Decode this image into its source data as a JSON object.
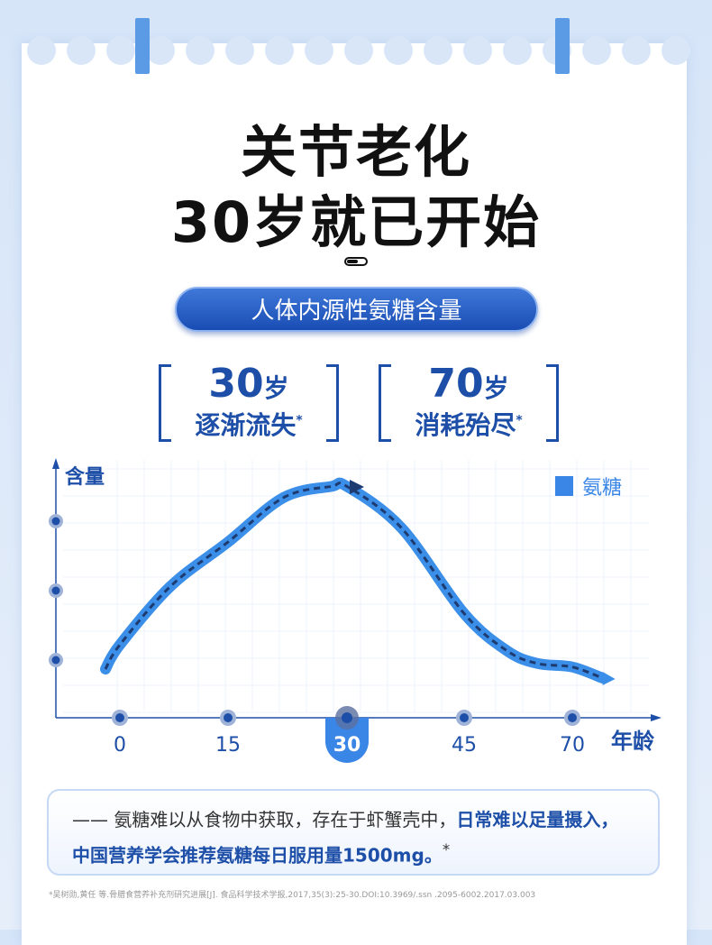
{
  "header": {
    "line1": "关节老化",
    "line2": "30岁就已开始"
  },
  "pill": "人体内源性氨糖含量",
  "stats": [
    {
      "num": "30",
      "unit": "岁",
      "text": "逐渐流失",
      "mark": "*"
    },
    {
      "num": "70",
      "unit": "岁",
      "text": "消耗殆尽",
      "mark": "*"
    }
  ],
  "colors": {
    "accent": "#1e4fa8",
    "curve": "#3b8fe8",
    "highlight": "#3a86e6"
  },
  "chart_data": {
    "type": "line",
    "ylabel": "含量",
    "xlabel": "年龄",
    "legend": {
      "label": "氨糖",
      "position": "top-right"
    },
    "x_ticks": [
      "0",
      "15",
      "30",
      "45",
      "70"
    ],
    "highlight_tick": "30",
    "y_ticks_unlabeled": [
      1,
      2,
      3
    ],
    "ylim": [
      0,
      4
    ],
    "x": [
      -2,
      0,
      7,
      15,
      22,
      28,
      30,
      37,
      45,
      55,
      62,
      70,
      77
    ],
    "y": [
      0.87,
      1.22,
      2.06,
      2.7,
      3.34,
      3.5,
      3.5,
      2.9,
      1.67,
      1.13,
      0.95,
      0.9,
      0.74
    ]
  },
  "note": {
    "prefix": "—— 氨糖难以从食物中获取，存在于虾蟹壳中，",
    "bold": "日常难以足量摄入，中国营养学会推荐氨糖每日服用量1500mg。",
    "mark": "*"
  },
  "reference": "*吴树勋,黄任 等.骨腊食营养补充剂研究进展[J]. 食品科学技术学报,2017,35(3):25-30.DOI:10.3969/.ssn .2095-6002.2017.03.003"
}
